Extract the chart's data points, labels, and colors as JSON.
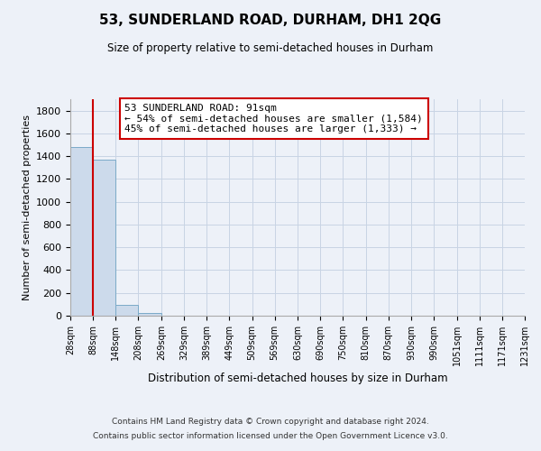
{
  "title": "53, SUNDERLAND ROAD, DURHAM, DH1 2QG",
  "subtitle": "Size of property relative to semi-detached houses in Durham",
  "xlabel": "Distribution of semi-detached houses by size in Durham",
  "ylabel": "Number of semi-detached properties",
  "bar_color": "#ccdaeb",
  "bar_edge_color": "#7aaac8",
  "grid_color": "#c8d4e4",
  "background_color": "#edf1f8",
  "bin_edges": [
    28,
    88,
    148,
    208,
    269,
    329,
    389,
    449,
    509,
    569,
    630,
    690,
    750,
    810,
    870,
    930,
    990,
    1051,
    1111,
    1171,
    1231
  ],
  "bin_labels": [
    "28sqm",
    "88sqm",
    "148sqm",
    "208sqm",
    "269sqm",
    "329sqm",
    "389sqm",
    "449sqm",
    "509sqm",
    "569sqm",
    "630sqm",
    "690sqm",
    "750sqm",
    "810sqm",
    "870sqm",
    "930sqm",
    "990sqm",
    "1051sqm",
    "1111sqm",
    "1171sqm",
    "1231sqm"
  ],
  "bar_heights": [
    1484,
    1369,
    96,
    25,
    0,
    0,
    0,
    0,
    0,
    0,
    0,
    0,
    0,
    0,
    0,
    0,
    0,
    0,
    0,
    0
  ],
  "ylim": [
    0,
    1900
  ],
  "yticks": [
    0,
    200,
    400,
    600,
    800,
    1000,
    1200,
    1400,
    1600,
    1800
  ],
  "property_line_x": 88,
  "property_line_color": "#cc0000",
  "annotation_box_color": "#ffffff",
  "annotation_box_edge": "#cc0000",
  "annotation_title": "53 SUNDERLAND ROAD: 91sqm",
  "annotation_line1": "← 54% of semi-detached houses are smaller (1,584)",
  "annotation_line2": "45% of semi-detached houses are larger (1,333) →",
  "footer_line1": "Contains HM Land Registry data © Crown copyright and database right 2024.",
  "footer_line2": "Contains public sector information licensed under the Open Government Licence v3.0."
}
